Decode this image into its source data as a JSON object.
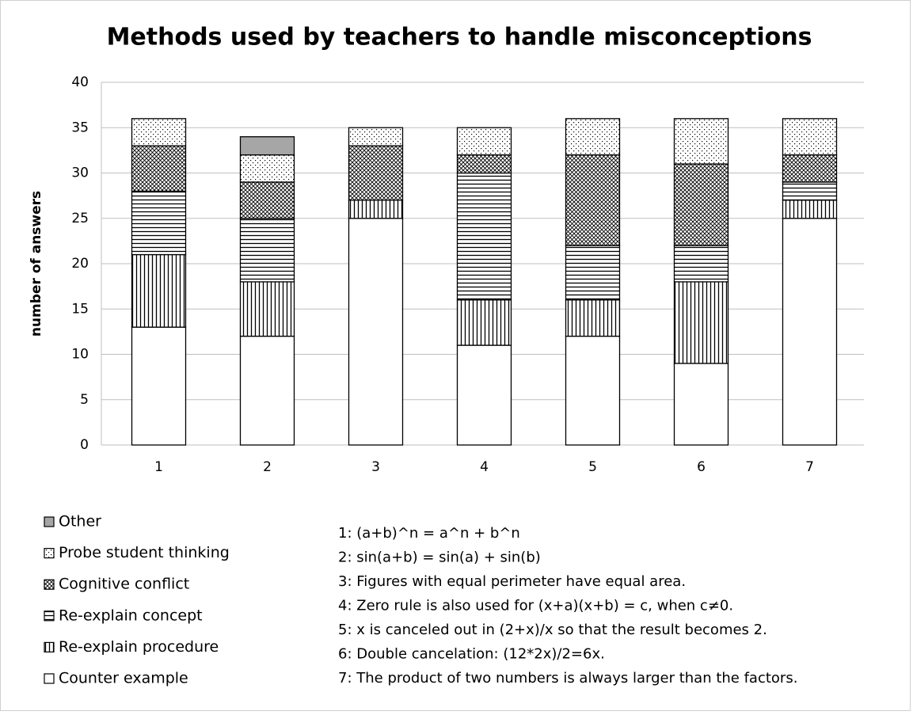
{
  "chart_data": {
    "type": "stacked-bar",
    "title": "Methods used by teachers to handle misconceptions",
    "y_label": "number of answers",
    "categories": [
      "1",
      "2",
      "3",
      "4",
      "5",
      "6",
      "7"
    ],
    "series": [
      {
        "name": "Counter example",
        "color": "#ffffff",
        "pattern": "none",
        "values": [
          13,
          12,
          25,
          11,
          12,
          9,
          25
        ]
      },
      {
        "name": "Re-explain procedure",
        "color": "#ffffff",
        "pattern": "vertical",
        "values": [
          8,
          6,
          2,
          5,
          4,
          9,
          2
        ]
      },
      {
        "name": "Re-explain concept",
        "color": "#ffffff",
        "pattern": "horizontal",
        "values": [
          7,
          7,
          0,
          14,
          6,
          4,
          2
        ]
      },
      {
        "name": "Cognitive conflict",
        "color": "#ffffff",
        "pattern": "crosshatch",
        "values": [
          5,
          4,
          6,
          2,
          10,
          9,
          3
        ]
      },
      {
        "name": "Probe student thinking",
        "color": "#ffffff",
        "pattern": "dots",
        "values": [
          3,
          3,
          2,
          3,
          4,
          5,
          4
        ]
      },
      {
        "name": "Other",
        "color": "#a6a6a6",
        "pattern": "solid",
        "values": [
          0,
          2,
          0,
          0,
          0,
          0,
          0
        ]
      }
    ],
    "ylim": [
      0,
      40
    ],
    "yticks": [
      0,
      5,
      10,
      15,
      20,
      25,
      30,
      35,
      40
    ],
    "grid": true,
    "annotations": [
      "1: (a+b)^n = a^n + b^n",
      "2: sin(a+b) = sin(a) + sin(b)",
      "3: Figures with equal perimeter have equal area.",
      "4: Zero rule is also used for (x+a)(x+b) = c, when c≠0.",
      "5: x is canceled out in (2+x)/x so that the result becomes 2.",
      "6: Double cancelation: (12*2x)/2=6x.",
      "7: The product of two numbers is always larger than the factors."
    ]
  }
}
